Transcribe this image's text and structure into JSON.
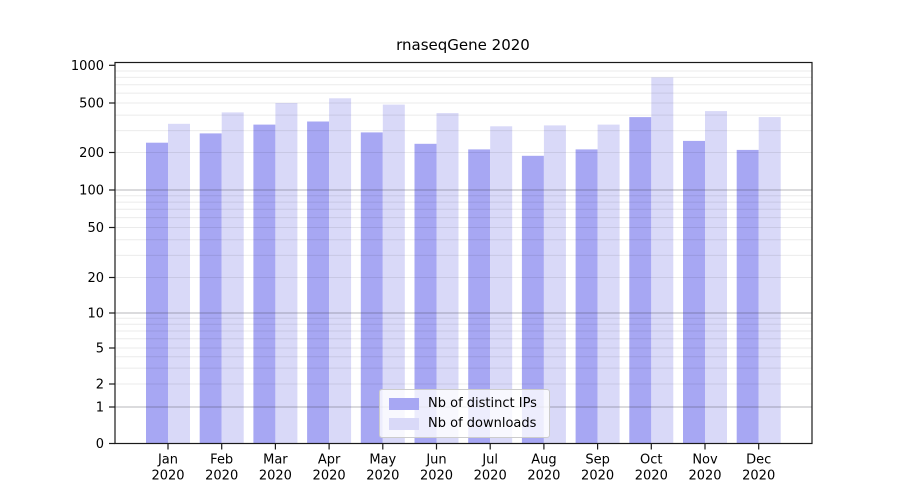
{
  "title": "rnaseqGene 2020",
  "chart_data": {
    "type": "bar",
    "title": "rnaseqGene 2020",
    "categories": [
      "Jan",
      "Feb",
      "Mar",
      "Apr",
      "May",
      "Jun",
      "Jul",
      "Aug",
      "Sep",
      "Oct",
      "Nov",
      "Dec"
    ],
    "year": "2020",
    "series": [
      {
        "name": "Nb of distinct IPs",
        "color": "#a7a7f3",
        "values": [
          240,
          285,
          335,
          355,
          290,
          235,
          212,
          188,
          212,
          385,
          248,
          210
        ]
      },
      {
        "name": "Nb of downloads",
        "color": "#d9d9f8",
        "values": [
          340,
          420,
          500,
          545,
          485,
          415,
          325,
          330,
          335,
          800,
          430,
          385
        ]
      }
    ],
    "xlabel": "",
    "ylabel": "",
    "y_scale": "log",
    "y_tick_values": [
      0,
      1,
      2,
      5,
      10,
      20,
      50,
      100,
      200,
      500,
      1000
    ],
    "y_minor_grid_values": [
      2,
      3,
      4,
      5,
      6,
      7,
      8,
      9,
      20,
      30,
      40,
      50,
      60,
      70,
      80,
      90,
      200,
      300,
      400,
      500,
      600,
      700,
      800,
      900
    ],
    "y_major_grid_values": [
      1,
      10,
      100
    ],
    "ylim": [
      0,
      1000
    ],
    "grid": true,
    "legend_position": "lower center"
  }
}
